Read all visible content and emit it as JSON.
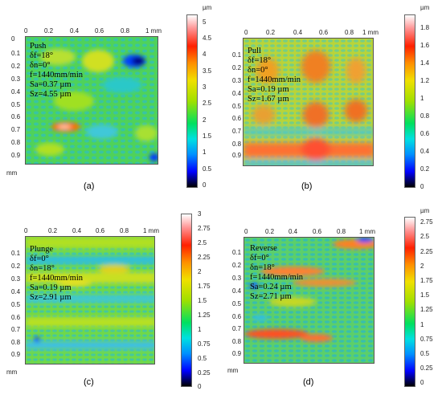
{
  "figure": {
    "axis_unit": "mm",
    "colorbar_unit": "µm",
    "panels": [
      {
        "id": "a",
        "label": "(a)",
        "annotation": {
          "mode": "Push",
          "delta_f": "δf=18°",
          "delta_n": "δn=0°",
          "feed": "f=1440mm/min",
          "sa": "Sa=0.37 µm",
          "sz": "Sz=4.55 µm"
        },
        "x_ticks": [
          "0",
          "0.2",
          "0.4",
          "0.6",
          "0.8",
          "1 mm"
        ],
        "y_ticks": [
          "0.1",
          "0.2",
          "0.3",
          "0.4",
          "0.5",
          "0.6",
          "0.7",
          "0.8",
          "0.9"
        ],
        "colorbar_ticks": [
          "5",
          "4.5",
          "4",
          "3.5",
          "3",
          "2.5",
          "2",
          "1.5",
          "1",
          "0.5",
          "0"
        ],
        "colorbar_range": [
          0,
          5.3
        ],
        "base_color": "#4fd25a"
      },
      {
        "id": "b",
        "label": "(b)",
        "annotation": {
          "mode": "Pull",
          "delta_f": "δf=18°",
          "delta_n": "δn=0°",
          "feed": "f=1440mm/min",
          "sa": "Sa=0.19 µm",
          "sz": "Sz=1.67 µm"
        },
        "x_ticks": [
          "0",
          "0.2",
          "0.4",
          "0.6",
          "0.8",
          "1 mm"
        ],
        "y_ticks": [
          "0.1",
          "0.2",
          "0.3",
          "0.4",
          "0.5",
          "0.6",
          "0.7",
          "0.8",
          "0.9"
        ],
        "colorbar_ticks": [
          "1.8",
          "1.6",
          "1.4",
          "1.2",
          "1",
          "0.8",
          "0.6",
          "0.4",
          "0.2",
          "0"
        ],
        "colorbar_range": [
          0,
          1.95
        ],
        "base_color": "#b8d43a"
      },
      {
        "id": "c",
        "label": "(c)",
        "annotation": {
          "mode": "Plunge",
          "delta_f": "δf=0°",
          "delta_n": "δn=18°",
          "feed": "f=1440mm/min",
          "sa": "Sa=0.19 µm",
          "sz": "Sz=2.91 µm"
        },
        "x_ticks": [
          "0",
          "0.2",
          "0.4",
          "0.6",
          "0.8",
          "1 mm"
        ],
        "y_ticks": [
          "0.1",
          "0.2",
          "0.3",
          "0.4",
          "0.5",
          "0.6",
          "0.7",
          "0.8",
          "0.9"
        ],
        "colorbar_ticks": [
          "3",
          "2.75",
          "2.5",
          "2.25",
          "2",
          "1.75",
          "1.5",
          "1.25",
          "1",
          "0.75",
          "0.5",
          "0.25",
          "0"
        ],
        "colorbar_range": [
          0,
          3
        ],
        "base_color": "#6fd84a"
      },
      {
        "id": "d",
        "label": "(d)",
        "annotation": {
          "mode": "Reverse",
          "delta_f": "δf=0°",
          "delta_n": "δn=18°",
          "feed": "f=1440mm/min",
          "sa": "Sa=0.24 µm",
          "sz": "Sz=2.71 µm"
        },
        "x_ticks": [
          "0",
          "0.2",
          "0.4",
          "0.6",
          "0.8",
          "1 mm"
        ],
        "y_ticks": [
          "0.1",
          "0.2",
          "0.3",
          "0.4",
          "0.5",
          "0.6",
          "0.7",
          "0.8",
          "0.9"
        ],
        "colorbar_ticks": [
          "2.75",
          "2.5",
          "2.25",
          "2",
          "1.75",
          "1.5",
          "1.25",
          "1",
          "0.75",
          "0.5",
          "0.25",
          "0"
        ],
        "colorbar_range": [
          0,
          2.9
        ],
        "base_color": "#5ccf6a"
      }
    ],
    "colormap": [
      "#000000",
      "#0000ff",
      "#0090ff",
      "#00e0e0",
      "#00e060",
      "#a0e000",
      "#f0e000",
      "#ff9000",
      "#ff2000",
      "#ff9090",
      "#ffffff"
    ]
  }
}
